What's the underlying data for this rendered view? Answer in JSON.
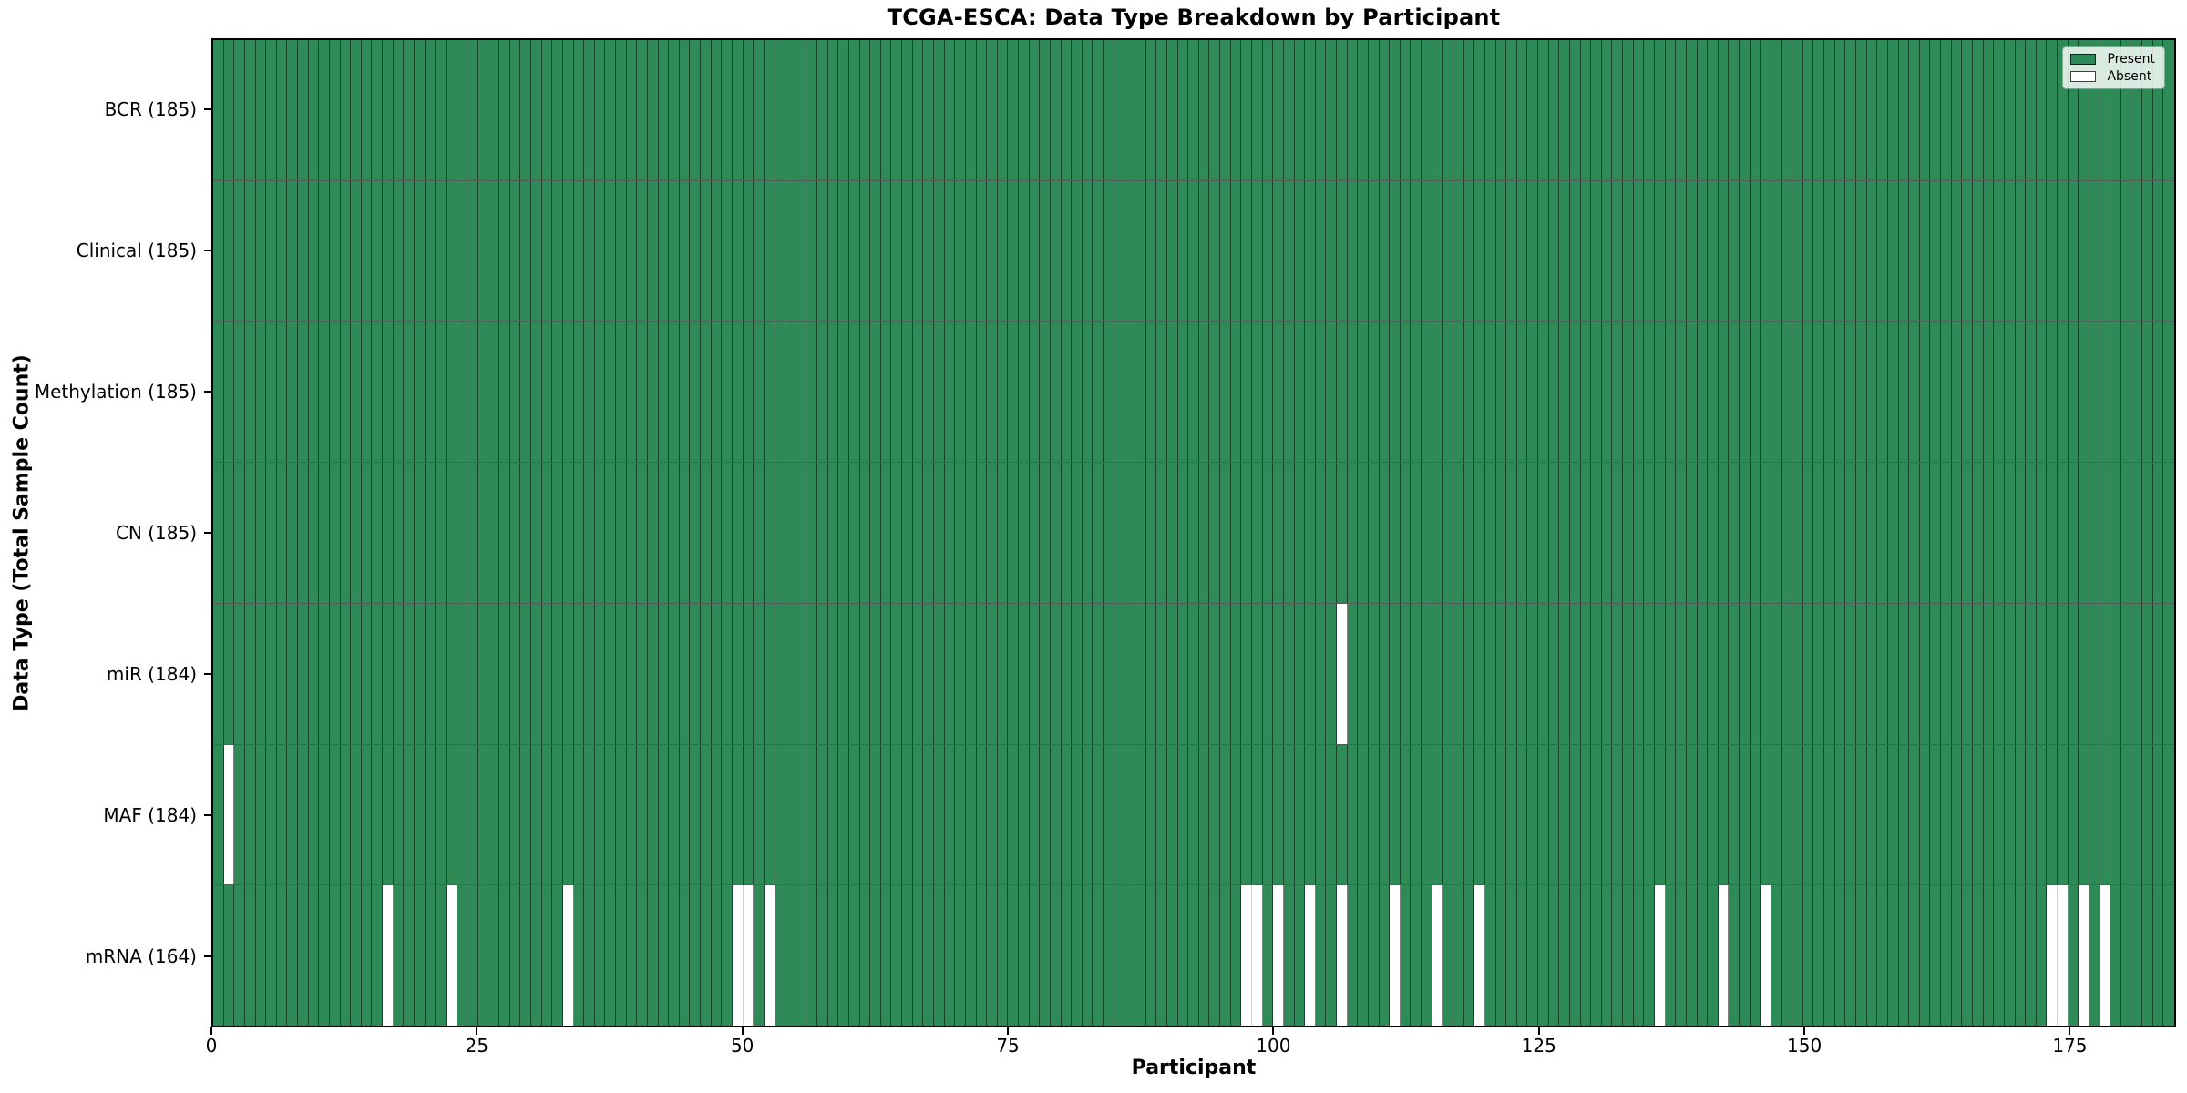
{
  "colors": {
    "present_green": "#2e8b57",
    "absent_white": "#ffffff",
    "cell_edge": "rgba(0,0,0,0.5)",
    "row_divider": "rgba(0,0,0,0.65)",
    "axis_border": "#000000"
  },
  "chart_data": {
    "type": "heatmap",
    "title": "TCGA-ESCA: Data Type Breakdown by Participant",
    "xlabel": "Participant",
    "ylabel": "Data Type (Total Sample Count)",
    "legend_labels": [
      "Present",
      "Absent"
    ],
    "legend_position": "upper right",
    "grid": false,
    "x_range": [
      0,
      185
    ],
    "x_ticks": [
      0,
      25,
      50,
      75,
      100,
      125,
      150,
      175
    ],
    "n_participants": 185,
    "rows": [
      {
        "data_type": "BCR",
        "label": "BCR (185)",
        "count": 185,
        "absent_participants": []
      },
      {
        "data_type": "Clinical",
        "label": "Clinical (185)",
        "count": 185,
        "absent_participants": []
      },
      {
        "data_type": "Methylation",
        "label": "Methylation (185)",
        "count": 185,
        "absent_participants": []
      },
      {
        "data_type": "CN",
        "label": "CN (185)",
        "count": 185,
        "absent_participants": []
      },
      {
        "data_type": "miR",
        "label": "miR (184)",
        "count": 184,
        "absent_participants": [
          106
        ]
      },
      {
        "data_type": "MAF",
        "label": "MAF (184)",
        "count": 184,
        "absent_participants": [
          1
        ]
      },
      {
        "data_type": "mRNA",
        "label": "mRNA (164)",
        "count": 164,
        "absent_participants": [
          16,
          22,
          33,
          49,
          50,
          52,
          97,
          98,
          100,
          103,
          106,
          111,
          115,
          119,
          136,
          142,
          146,
          173,
          174,
          176,
          178
        ]
      }
    ]
  }
}
